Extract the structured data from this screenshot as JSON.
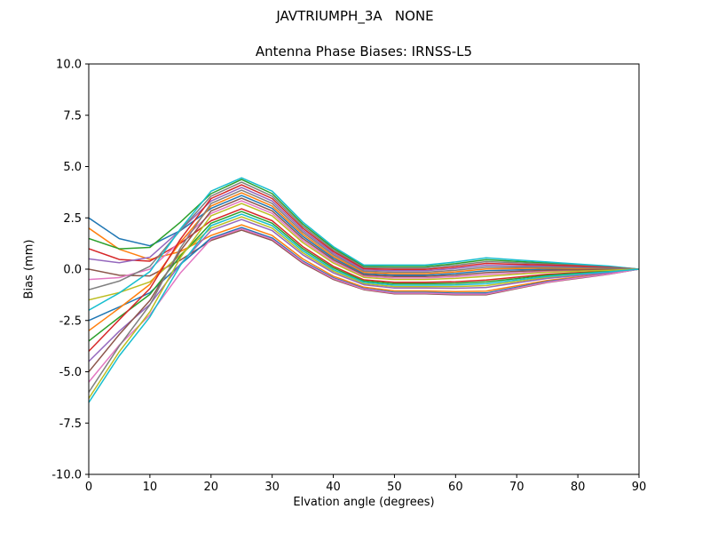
{
  "chart_data": {
    "type": "line",
    "suptitle": "JAVTRIUMPH_3A   NONE",
    "title": "Antenna Phase Biases: IRNSS-L5",
    "xlabel": "Elvation angle (degrees)",
    "ylabel": "Bias (mm)",
    "xlim": [
      0,
      90
    ],
    "ylim": [
      -10,
      10
    ],
    "xticks": [
      0,
      10,
      20,
      30,
      40,
      50,
      60,
      70,
      80,
      90
    ],
    "ytick_values": [
      -10,
      -7.5,
      -5,
      -2.5,
      0,
      2.5,
      5,
      7.5,
      10
    ],
    "ytick_labels": [
      "-10.0",
      "-7.5",
      "-5.0",
      "-2.5",
      "0.0",
      "2.5",
      "5.0",
      "7.5",
      "10.0"
    ],
    "grid": false,
    "legend": "none",
    "x": [
      0,
      5,
      10,
      15,
      20,
      25,
      30,
      35,
      40,
      45,
      50,
      55,
      60,
      65,
      70,
      75,
      80,
      85,
      90
    ],
    "series": [
      {
        "name": "series-01",
        "color": "#1f77b4",
        "values": [
          2.5,
          1.49,
          1.14,
          1.88,
          2.96,
          3.59,
          2.96,
          1.6,
          0.54,
          -0.22,
          -0.29,
          -0.29,
          -0.21,
          -0.08,
          -0.04,
          0.0,
          0.01,
          0.01,
          0.0
        ]
      },
      {
        "name": "series-02",
        "color": "#ff7f0e",
        "values": [
          2.0,
          0.97,
          0.47,
          0.86,
          1.64,
          2.16,
          1.64,
          0.5,
          -0.34,
          -0.88,
          -1.06,
          -1.06,
          -1.09,
          -1.07,
          -0.81,
          -0.55,
          -0.38,
          -0.21,
          0.0
        ]
      },
      {
        "name": "series-03",
        "color": "#2ca02c",
        "values": [
          1.5,
          0.99,
          1.06,
          2.29,
          3.68,
          4.37,
          3.68,
          2.2,
          1.02,
          0.14,
          0.13,
          0.13,
          0.27,
          0.46,
          0.38,
          0.3,
          0.22,
          0.13,
          0.0
        ]
      },
      {
        "name": "series-04",
        "color": "#d62728",
        "values": [
          1.0,
          0.47,
          0.39,
          1.26,
          2.36,
          2.94,
          2.36,
          1.1,
          0.14,
          -0.52,
          -0.64,
          -0.64,
          -0.61,
          -0.53,
          -0.39,
          -0.25,
          -0.17,
          -0.09,
          0.0
        ]
      },
      {
        "name": "series-05",
        "color": "#9467bd",
        "values": [
          0.5,
          0.31,
          0.58,
          1.91,
          3.32,
          3.98,
          3.32,
          1.9,
          0.78,
          -0.04,
          -0.08,
          -0.08,
          0.03,
          0.19,
          0.17,
          0.15,
          0.11,
          0.07,
          0.0
        ]
      },
      {
        "name": "series-06",
        "color": "#8c564b",
        "values": [
          0.0,
          -0.3,
          -0.33,
          0.44,
          1.4,
          1.9,
          1.4,
          0.3,
          -0.5,
          -1.0,
          -1.2,
          -1.2,
          -1.25,
          -1.25,
          -0.95,
          -0.65,
          -0.45,
          -0.25,
          0.0
        ]
      },
      {
        "name": "series-07",
        "color": "#e377c2",
        "values": [
          -0.5,
          -0.41,
          0.0,
          1.35,
          2.72,
          3.33,
          2.72,
          1.4,
          0.38,
          -0.34,
          -0.43,
          -0.43,
          -0.37,
          -0.26,
          -0.18,
          -0.1,
          -0.07,
          -0.03,
          0.0
        ]
      },
      {
        "name": "series-08",
        "color": "#7f7f7f",
        "values": [
          -1.0,
          -0.58,
          0.14,
          1.9,
          3.56,
          4.24,
          3.56,
          2.1,
          0.94,
          0.08,
          0.06,
          0.06,
          0.19,
          0.37,
          0.31,
          0.25,
          0.18,
          0.11,
          0.0
        ]
      },
      {
        "name": "series-09",
        "color": "#bcbd22",
        "values": [
          -1.5,
          -1.14,
          -0.62,
          0.7,
          2.0,
          2.55,
          2.0,
          0.8,
          -0.1,
          -0.7,
          -0.85,
          -0.85,
          -0.85,
          -0.8,
          -0.6,
          -0.4,
          -0.28,
          -0.15,
          0.0
        ]
      },
      {
        "name": "series-10",
        "color": "#17becf",
        "values": [
          -2.0,
          -1.16,
          -0.12,
          1.96,
          3.8,
          4.45,
          3.8,
          2.3,
          1.1,
          0.2,
          0.2,
          0.2,
          0.35,
          0.55,
          0.45,
          0.35,
          0.25,
          0.15,
          0.0
        ]
      },
      {
        "name": "series-11",
        "color": "#1f77b4",
        "values": [
          -2.5,
          -1.84,
          -1.15,
          0.23,
          1.52,
          2.03,
          1.52,
          0.4,
          -0.42,
          -0.94,
          -1.13,
          -1.13,
          -1.17,
          -1.16,
          -0.88,
          -0.6,
          -0.42,
          -0.23,
          0.0
        ]
      },
      {
        "name": "series-12",
        "color": "#ff7f0e",
        "values": [
          -3.0,
          -1.9,
          -0.74,
          1.31,
          3.08,
          3.72,
          3.08,
          1.7,
          0.62,
          -0.16,
          -0.22,
          -0.22,
          -0.13,
          0.01,
          0.03,
          0.05,
          0.04,
          0.03,
          0.0
        ]
      },
      {
        "name": "series-13",
        "color": "#2ca02c",
        "values": [
          -3.5,
          -2.34,
          -1.23,
          0.64,
          2.24,
          2.81,
          2.24,
          1.0,
          0.06,
          -0.58,
          -0.71,
          -0.71,
          -0.69,
          -0.62,
          -0.46,
          -0.3,
          -0.2,
          -0.11,
          0.0
        ]
      },
      {
        "name": "series-14",
        "color": "#d62728",
        "values": [
          -4.0,
          -2.46,
          -0.95,
          1.46,
          3.44,
          4.11,
          3.44,
          2.0,
          0.86,
          0.02,
          -0.01,
          -0.01,
          0.11,
          0.28,
          0.24,
          0.2,
          0.15,
          0.09,
          0.0
        ]
      },
      {
        "name": "series-15",
        "color": "#9467bd",
        "values": [
          -4.5,
          -3.02,
          -1.72,
          0.25,
          1.88,
          2.42,
          1.88,
          0.7,
          -0.18,
          -0.76,
          -0.92,
          -0.92,
          -0.93,
          -0.89,
          -0.67,
          -0.45,
          -0.31,
          -0.17,
          0.0
        ]
      },
      {
        "name": "series-16",
        "color": "#8c564b",
        "values": [
          -5.0,
          -3.18,
          -1.53,
          0.9,
          2.84,
          3.46,
          2.84,
          1.5,
          0.46,
          -0.28,
          -0.36,
          -0.36,
          -0.29,
          -0.17,
          -0.11,
          -0.05,
          -0.03,
          -0.01,
          0.0
        ]
      },
      {
        "name": "series-17",
        "color": "#e377c2",
        "values": [
          -5.5,
          -3.7,
          -2.23,
          -0.18,
          1.46,
          1.97,
          1.46,
          0.35,
          -0.46,
          -0.97,
          -1.17,
          -1.17,
          -1.21,
          -1.21,
          -0.92,
          -0.63,
          -0.43,
          -0.24,
          0.0
        ]
      },
      {
        "name": "series-18",
        "color": "#7f7f7f",
        "values": [
          -6.0,
          -3.74,
          -1.74,
          1.04,
          3.2,
          3.85,
          3.2,
          1.8,
          0.7,
          -0.1,
          -0.15,
          -0.15,
          -0.05,
          0.1,
          0.1,
          0.1,
          0.08,
          0.05,
          0.0
        ]
      },
      {
        "name": "series-19",
        "color": "#bcbd22",
        "values": [
          -6.3,
          -4.02,
          -2.08,
          0.56,
          2.6,
          3.2,
          2.6,
          1.3,
          0.3,
          -0.4,
          -0.5,
          -0.5,
          -0.45,
          -0.35,
          -0.25,
          -0.15,
          -0.1,
          -0.05,
          0.0
        ]
      },
      {
        "name": "series-20",
        "color": "#17becf",
        "values": [
          -6.5,
          -4.22,
          -2.33,
          0.19,
          2.12,
          2.68,
          2.12,
          0.9,
          -0.02,
          -0.64,
          -0.78,
          -0.78,
          -0.77,
          -0.71,
          -0.53,
          -0.35,
          -0.24,
          -0.13,
          0.0
        ]
      }
    ]
  }
}
